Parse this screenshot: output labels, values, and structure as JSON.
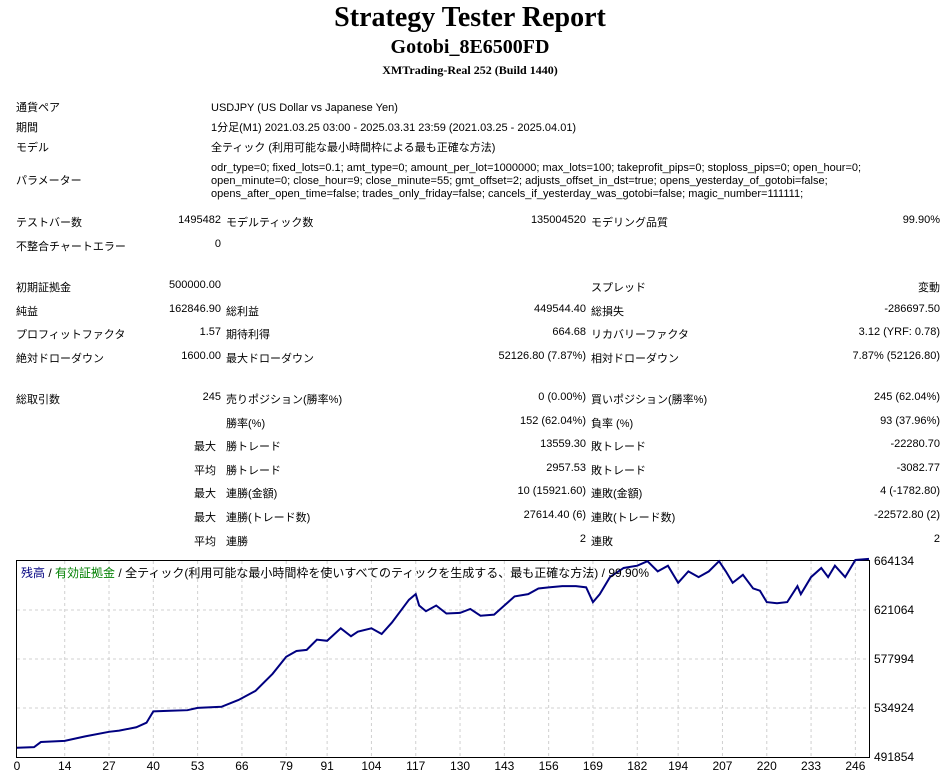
{
  "header": {
    "title": "Strategy Tester Report",
    "subtitle": "Gotobi_8E6500FD",
    "meta": "XMTrading-Real 252 (Build 1440)"
  },
  "info": [
    {
      "label": "通貨ペア",
      "value": "USDJPY (US Dollar vs Japanese Yen)"
    },
    {
      "label": "期間",
      "value": "1分足(M1) 2021.03.25 03:00 - 2025.03.31 23:59 (2021.03.25 - 2025.04.01)"
    },
    {
      "label": "モデル",
      "value": "全ティック (利用可能な最小時間枠による最も正確な方法)"
    },
    {
      "label": "パラメーター",
      "value": "odr_type=0; fixed_lots=0.1; amt_type=0; amount_per_lot=1000000; max_lots=100; takeprofit_pips=0; stoploss_pips=0; open_hour=0; open_minute=0; close_hour=9; close_minute=55; gmt_offset=2; adjusts_offset_in_dst=true; opens_yesterday_of_gotobi=false; opens_after_open_time=false; trades_only_friday=false; cancels_if_yesterday_was_gotobi=false; magic_number=111111;"
    }
  ],
  "stats": {
    "bars_label": "テストバー数",
    "bars_val": "1495482",
    "ticks_label": "モデルティック数",
    "ticks_val": "135004520",
    "quality_label": "モデリング品質",
    "quality_val": "99.90%",
    "mismatch_label": "不整合チャートエラー",
    "mismatch_val": "0",
    "deposit_label": "初期証拠金",
    "deposit_val": "500000.00",
    "spread_label": "スプレッド",
    "spread_val": "変動",
    "net_label": "純益",
    "net_val": "162846.90",
    "gross_profit_label": "総利益",
    "gross_profit_val": "449544.40",
    "gross_loss_label": "総損失",
    "gross_loss_val": "-286697.50",
    "pf_label": "プロフィットファクタ",
    "pf_val": "1.57",
    "payoff_label": "期待利得",
    "payoff_val": "664.68",
    "recovery_label": "リカバリーファクタ",
    "recovery_val": "3.12 (YRF: 0.78)",
    "abs_dd_label": "絶対ドローダウン",
    "abs_dd_val": "1600.00",
    "max_dd_label": "最大ドローダウン",
    "max_dd_val": "52126.80 (7.87%)",
    "rel_dd_label": "相対ドローダウン",
    "rel_dd_val": "7.87% (52126.80)",
    "total_trades_label": "総取引数",
    "total_trades_val": "245",
    "short_pos_label": "売りポジション(勝率%)",
    "short_pos_val": "0 (0.00%)",
    "long_pos_label": "買いポジション(勝率%)",
    "long_pos_val": "245 (62.04%)",
    "win_rate_label": "勝率(%)",
    "win_rate_val": "152 (62.04%)",
    "loss_rate_label": "負率 (%)",
    "loss_rate_val": "93 (37.96%)",
    "max_label": "最大",
    "avg_label": "平均",
    "max_win_trade_label": "勝トレード",
    "max_win_trade_val": "13559.30",
    "max_loss_trade_label": "敗トレード",
    "max_loss_trade_val": "-22280.70",
    "avg_win_trade_label": "勝トレード",
    "avg_win_trade_val": "2957.53",
    "avg_loss_trade_label": "敗トレード",
    "avg_loss_trade_val": "-3082.77",
    "max_consec_wins_amt_label": "連勝(金額)",
    "max_consec_wins_amt_val": "10 (15921.60)",
    "max_consec_loss_amt_label": "連敗(金額)",
    "max_consec_loss_amt_val": "4 (-1782.80)",
    "max_consec_wins_cnt_label": "連勝(トレード数)",
    "max_consec_wins_cnt_val": "27614.40 (6)",
    "max_consec_loss_cnt_label": "連敗(トレード数)",
    "max_consec_loss_cnt_val": "-22572.80 (2)",
    "avg_consec_wins_label": "連勝",
    "avg_consec_wins_val": "2",
    "avg_consec_loss_label": "連敗",
    "avg_consec_loss_val": "2"
  },
  "chart_data": {
    "type": "line",
    "legend": {
      "part1": "残高",
      "sep1": " / ",
      "part2": "有効証拠金",
      "sep2": " / ",
      "part3": "全ティック(利用可能な最小時間枠を使いすべてのティックを生成する、最も正確な方法)",
      "sep3": " / ",
      "part4": "99.90%"
    },
    "y_axis": {
      "labels": [
        "664134",
        "621064",
        "577994",
        "534924",
        "491854"
      ],
      "min": 491854,
      "max": 664134
    },
    "x_axis": {
      "labels": [
        "0",
        "14",
        "27",
        "40",
        "53",
        "66",
        "79",
        "91",
        "104",
        "117",
        "130",
        "143",
        "156",
        "169",
        "182",
        "194",
        "207",
        "220",
        "233",
        "246"
      ],
      "max": 250
    },
    "series": [
      {
        "color": "#000080",
        "values": [
          {
            "x": 0,
            "y": 500000
          },
          {
            "x": 5,
            "y": 500500
          },
          {
            "x": 7,
            "y": 505000
          },
          {
            "x": 14,
            "y": 506000
          },
          {
            "x": 20,
            "y": 510000
          },
          {
            "x": 27,
            "y": 514000
          },
          {
            "x": 30,
            "y": 515000
          },
          {
            "x": 35,
            "y": 518000
          },
          {
            "x": 38,
            "y": 522000
          },
          {
            "x": 40,
            "y": 532000
          },
          {
            "x": 45,
            "y": 532500
          },
          {
            "x": 50,
            "y": 533000
          },
          {
            "x": 53,
            "y": 535000
          },
          {
            "x": 60,
            "y": 536000
          },
          {
            "x": 65,
            "y": 542000
          },
          {
            "x": 70,
            "y": 550000
          },
          {
            "x": 75,
            "y": 565000
          },
          {
            "x": 79,
            "y": 580000
          },
          {
            "x": 82,
            "y": 585000
          },
          {
            "x": 85,
            "y": 586000
          },
          {
            "x": 88,
            "y": 595000
          },
          {
            "x": 91,
            "y": 594000
          },
          {
            "x": 95,
            "y": 605000
          },
          {
            "x": 98,
            "y": 598000
          },
          {
            "x": 100,
            "y": 602000
          },
          {
            "x": 104,
            "y": 605000
          },
          {
            "x": 107,
            "y": 600000
          },
          {
            "x": 110,
            "y": 610000
          },
          {
            "x": 113,
            "y": 622000
          },
          {
            "x": 115,
            "y": 630000
          },
          {
            "x": 117,
            "y": 635000
          },
          {
            "x": 118,
            "y": 625000
          },
          {
            "x": 120,
            "y": 620000
          },
          {
            "x": 123,
            "y": 625000
          },
          {
            "x": 126,
            "y": 618000
          },
          {
            "x": 130,
            "y": 618500
          },
          {
            "x": 133,
            "y": 622000
          },
          {
            "x": 136,
            "y": 616000
          },
          {
            "x": 140,
            "y": 617000
          },
          {
            "x": 143,
            "y": 625000
          },
          {
            "x": 146,
            "y": 633000
          },
          {
            "x": 150,
            "y": 635000
          },
          {
            "x": 153,
            "y": 640000
          },
          {
            "x": 156,
            "y": 641000
          },
          {
            "x": 160,
            "y": 642000
          },
          {
            "x": 164,
            "y": 642000
          },
          {
            "x": 167,
            "y": 641000
          },
          {
            "x": 169,
            "y": 628000
          },
          {
            "x": 171,
            "y": 635000
          },
          {
            "x": 174,
            "y": 650000
          },
          {
            "x": 178,
            "y": 658000
          },
          {
            "x": 182,
            "y": 660000
          },
          {
            "x": 185,
            "y": 664000
          },
          {
            "x": 188,
            "y": 655000
          },
          {
            "x": 191,
            "y": 660000
          },
          {
            "x": 194,
            "y": 645000
          },
          {
            "x": 197,
            "y": 655000
          },
          {
            "x": 200,
            "y": 650000
          },
          {
            "x": 203,
            "y": 655000
          },
          {
            "x": 206,
            "y": 664000
          },
          {
            "x": 208,
            "y": 655000
          },
          {
            "x": 210,
            "y": 645000
          },
          {
            "x": 213,
            "y": 652000
          },
          {
            "x": 216,
            "y": 640000
          },
          {
            "x": 218,
            "y": 638000
          },
          {
            "x": 220,
            "y": 628000
          },
          {
            "x": 223,
            "y": 627000
          },
          {
            "x": 226,
            "y": 628000
          },
          {
            "x": 229,
            "y": 642000
          },
          {
            "x": 230,
            "y": 635000
          },
          {
            "x": 233,
            "y": 650000
          },
          {
            "x": 236,
            "y": 658000
          },
          {
            "x": 238,
            "y": 650000
          },
          {
            "x": 240,
            "y": 660000
          },
          {
            "x": 243,
            "y": 650000
          },
          {
            "x": 246,
            "y": 665000
          },
          {
            "x": 250,
            "y": 666000
          }
        ]
      }
    ]
  }
}
